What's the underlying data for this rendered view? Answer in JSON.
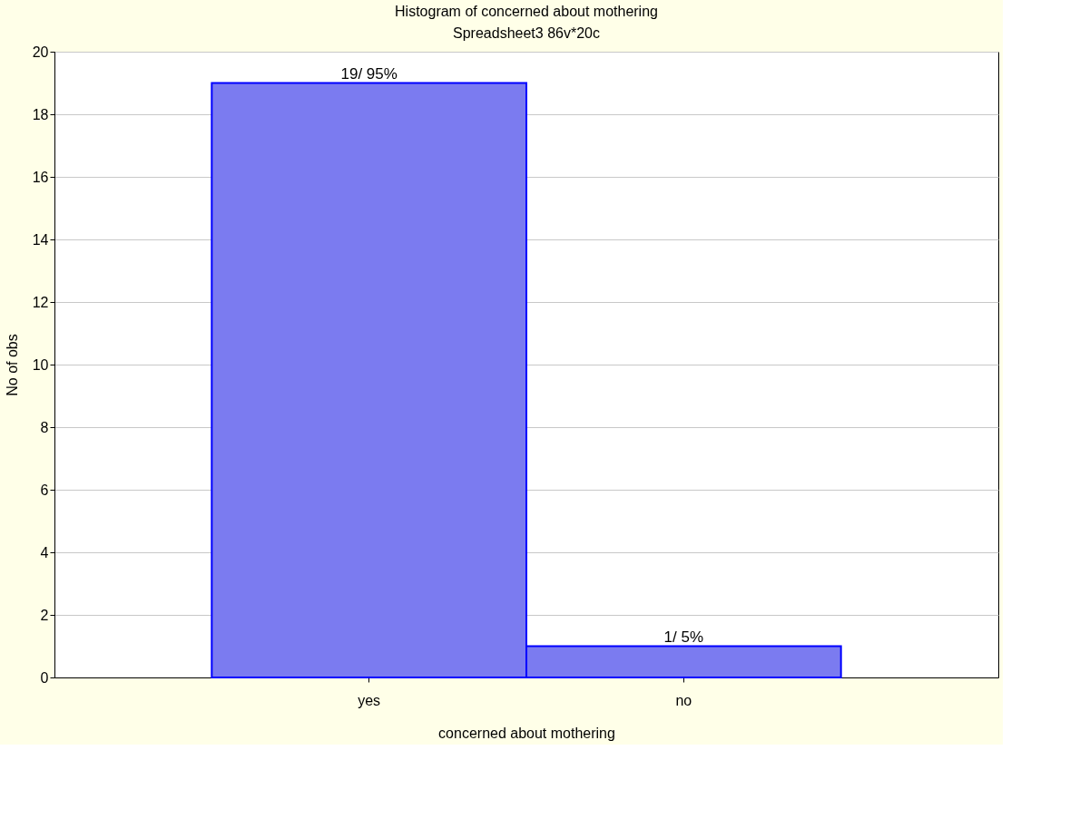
{
  "chart_data": {
    "type": "bar",
    "title": "Histogram of concerned about mothering",
    "subtitle": "Spreadsheet3 86v*20c",
    "xlabel": "concerned about mothering",
    "ylabel": "No of obs",
    "categories": [
      "yes",
      "no"
    ],
    "values": [
      19,
      1
    ],
    "value_labels": [
      "19/ 95%",
      "1/ 5%"
    ],
    "color": "#7b7bf0",
    "ylim": [
      0,
      20
    ],
    "yticks": [
      0,
      2,
      4,
      6,
      8,
      10,
      12,
      14,
      16,
      18,
      20
    ],
    "grid": "y"
  }
}
